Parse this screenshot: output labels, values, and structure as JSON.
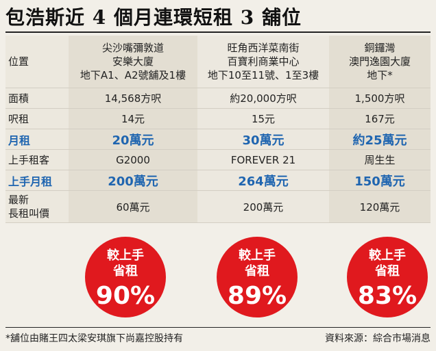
{
  "title": "包浩斯近 4 個月連環短租 3 舖位",
  "table": {
    "header": {
      "label": "位置",
      "col1": [
        "尖沙嘴彌敦道",
        "安樂大廈",
        "地下A1、A2號舖及1樓"
      ],
      "col2": [
        "旺角西洋菜南街",
        "百寶利商業中心",
        "地下10至11號、1至3樓"
      ],
      "col3": [
        "銅鑼灣",
        "澳門逸園大廈",
        "地下*"
      ]
    },
    "rows": [
      {
        "label": "面積",
        "values": [
          "14,568方呎",
          "約20,000方呎",
          "1,500方呎"
        ],
        "style": "normal"
      },
      {
        "label": "呎租",
        "values": [
          "14元",
          "15元",
          "167元"
        ],
        "style": "normal"
      },
      {
        "label": "月租",
        "values": [
          "20萬元",
          "30萬元",
          "約25萬元"
        ],
        "style": "blue"
      },
      {
        "label": "上手租客",
        "values": [
          "G2000",
          "FOREVER 21",
          "周生生"
        ],
        "style": "normal"
      },
      {
        "label": "上手月租",
        "values": [
          "200萬元",
          "264萬元",
          "150萬元"
        ],
        "style": "blue"
      },
      {
        "label_lines": [
          "最新",
          "長租叫價"
        ],
        "values": [
          "60萬元",
          "200萬元",
          "120萬元"
        ],
        "style": "latest"
      }
    ]
  },
  "badges": [
    {
      "line1": "較上手",
      "line2": "省租",
      "percent": "90%"
    },
    {
      "line1": "較上手",
      "line2": "省租",
      "percent": "89%"
    },
    {
      "line1": "較上手",
      "line2": "省租",
      "percent": "83%"
    }
  ],
  "footer": {
    "note": "*舖位由賭王四太梁安琪旗下尚嘉控股持有",
    "source": "資料來源：綜合市場消息"
  },
  "colors": {
    "accent_blue": "#1f65b0",
    "badge_red": "#e0191e",
    "background": "#f2efe8"
  }
}
